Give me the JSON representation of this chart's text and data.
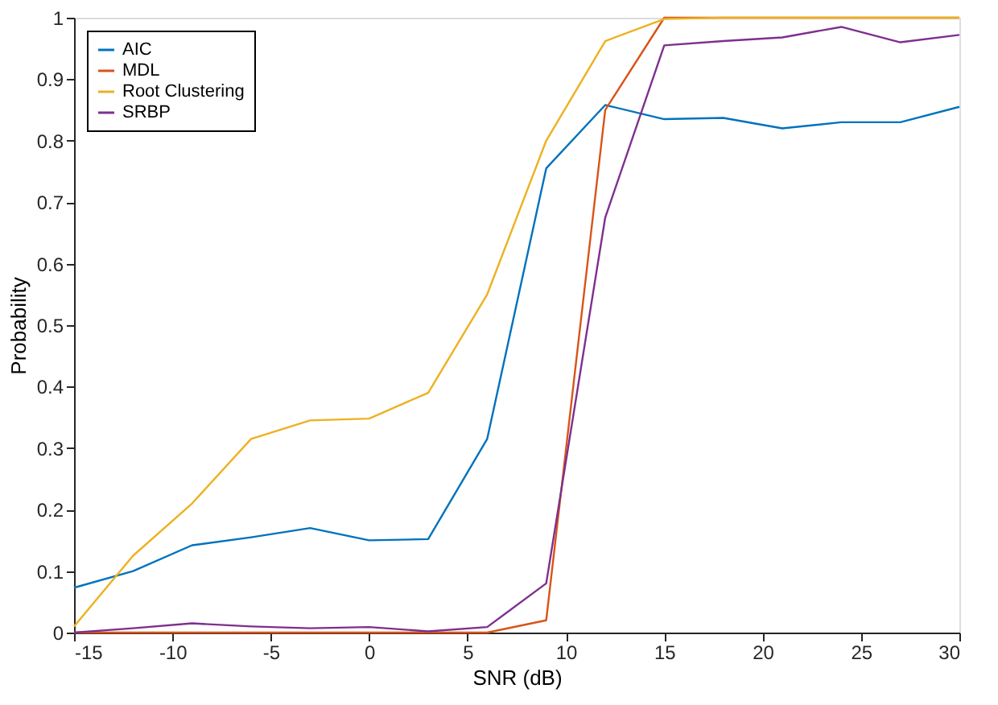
{
  "chart_data": {
    "type": "line",
    "xlabel": "SNR (dB)",
    "ylabel": "Probability",
    "x": [
      -15,
      -12,
      -9,
      -6,
      -3,
      0,
      3,
      6,
      9,
      12,
      15,
      18,
      21,
      24,
      27,
      30
    ],
    "series": [
      {
        "name": "AIC",
        "color": "#0072bd",
        "values": [
          0.073,
          0.1,
          0.142,
          0.155,
          0.17,
          0.15,
          0.152,
          0.315,
          0.755,
          0.858,
          0.835,
          0.837,
          0.82,
          0.83,
          0.83,
          0.855
        ]
      },
      {
        "name": "MDL",
        "color": "#d95319",
        "values": [
          0,
          0,
          0,
          0,
          0,
          0,
          0,
          0,
          0.02,
          0.85,
          1,
          1,
          1,
          1,
          1,
          1
        ]
      },
      {
        "name": "Root Clustering",
        "color": "#edb120",
        "values": [
          0.01,
          0.125,
          0.21,
          0.315,
          0.345,
          0.348,
          0.39,
          0.55,
          0.8,
          0.962,
          0.998,
          1,
          1,
          1,
          1,
          1
        ]
      },
      {
        "name": "SRBP",
        "color": "#7e2f8e",
        "values": [
          0,
          0.007,
          0.015,
          0.01,
          0.007,
          0.009,
          0.002,
          0.009,
          0.08,
          0.675,
          0.955,
          0.962,
          0.968,
          0.985,
          0.96,
          0.972
        ]
      }
    ],
    "xlim": [
      -15,
      30
    ],
    "xticks": [
      -15,
      -10,
      -5,
      0,
      5,
      10,
      15,
      20,
      25,
      30
    ],
    "ylim": [
      0,
      1
    ],
    "yticks": [
      0,
      0.1,
      0.2,
      0.3,
      0.4,
      0.5,
      0.6,
      0.7,
      0.8,
      0.9,
      1
    ],
    "grid": false,
    "legend": "top left",
    "marker": "none",
    "line_style": "solid"
  }
}
